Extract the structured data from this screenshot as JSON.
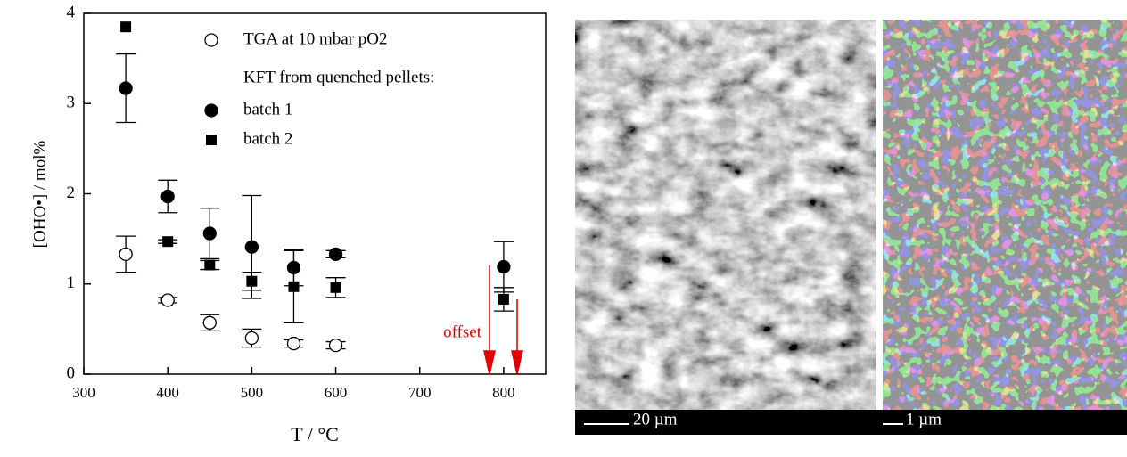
{
  "chart_data": {
    "type": "scatter",
    "x_label": "T / °C",
    "y_label": "[OHO•] / mol%",
    "xlim": [
      300,
      850
    ],
    "xticks": [
      300,
      400,
      500,
      600,
      700,
      800
    ],
    "ylim": [
      0,
      4
    ],
    "yticks": [
      0,
      1,
      2,
      3,
      4
    ],
    "legend_heading": "KFT from quenched pellets:",
    "annotation": "offset",
    "series": [
      {
        "name": "TGA at 10 mbar pO2",
        "marker": "open-circle",
        "color": "#000000",
        "x": [
          350,
          400,
          450,
          500,
          550,
          600
        ],
        "values": [
          1.33,
          0.82,
          0.57,
          0.4,
          0.34,
          0.32
        ],
        "errors": [
          0.2,
          0.03,
          0.09,
          0.1,
          0.04,
          0.04
        ]
      },
      {
        "name": "batch 1",
        "marker": "circle",
        "color": "#000000",
        "x": [
          350,
          400,
          450,
          500,
          550,
          600,
          800
        ],
        "values": [
          3.17,
          1.97,
          1.56,
          1.41,
          1.18,
          1.33,
          1.19
        ],
        "errors": [
          0.38,
          0.18,
          0.28,
          0.57,
          0.2,
          0.04,
          0.28
        ]
      },
      {
        "name": "batch 2",
        "marker": "square",
        "color": "#000000",
        "x": [
          350,
          400,
          450,
          500,
          550,
          600,
          800
        ],
        "values": [
          3.85,
          1.47,
          1.21,
          1.03,
          0.97,
          0.96,
          0.83
        ],
        "errors": [
          null,
          0.02,
          0.05,
          0.1,
          0.4,
          0.11,
          0.13
        ]
      }
    ]
  },
  "images": [
    {
      "scale_label": "20 µm"
    },
    {
      "scale_label": "1 µm"
    }
  ]
}
